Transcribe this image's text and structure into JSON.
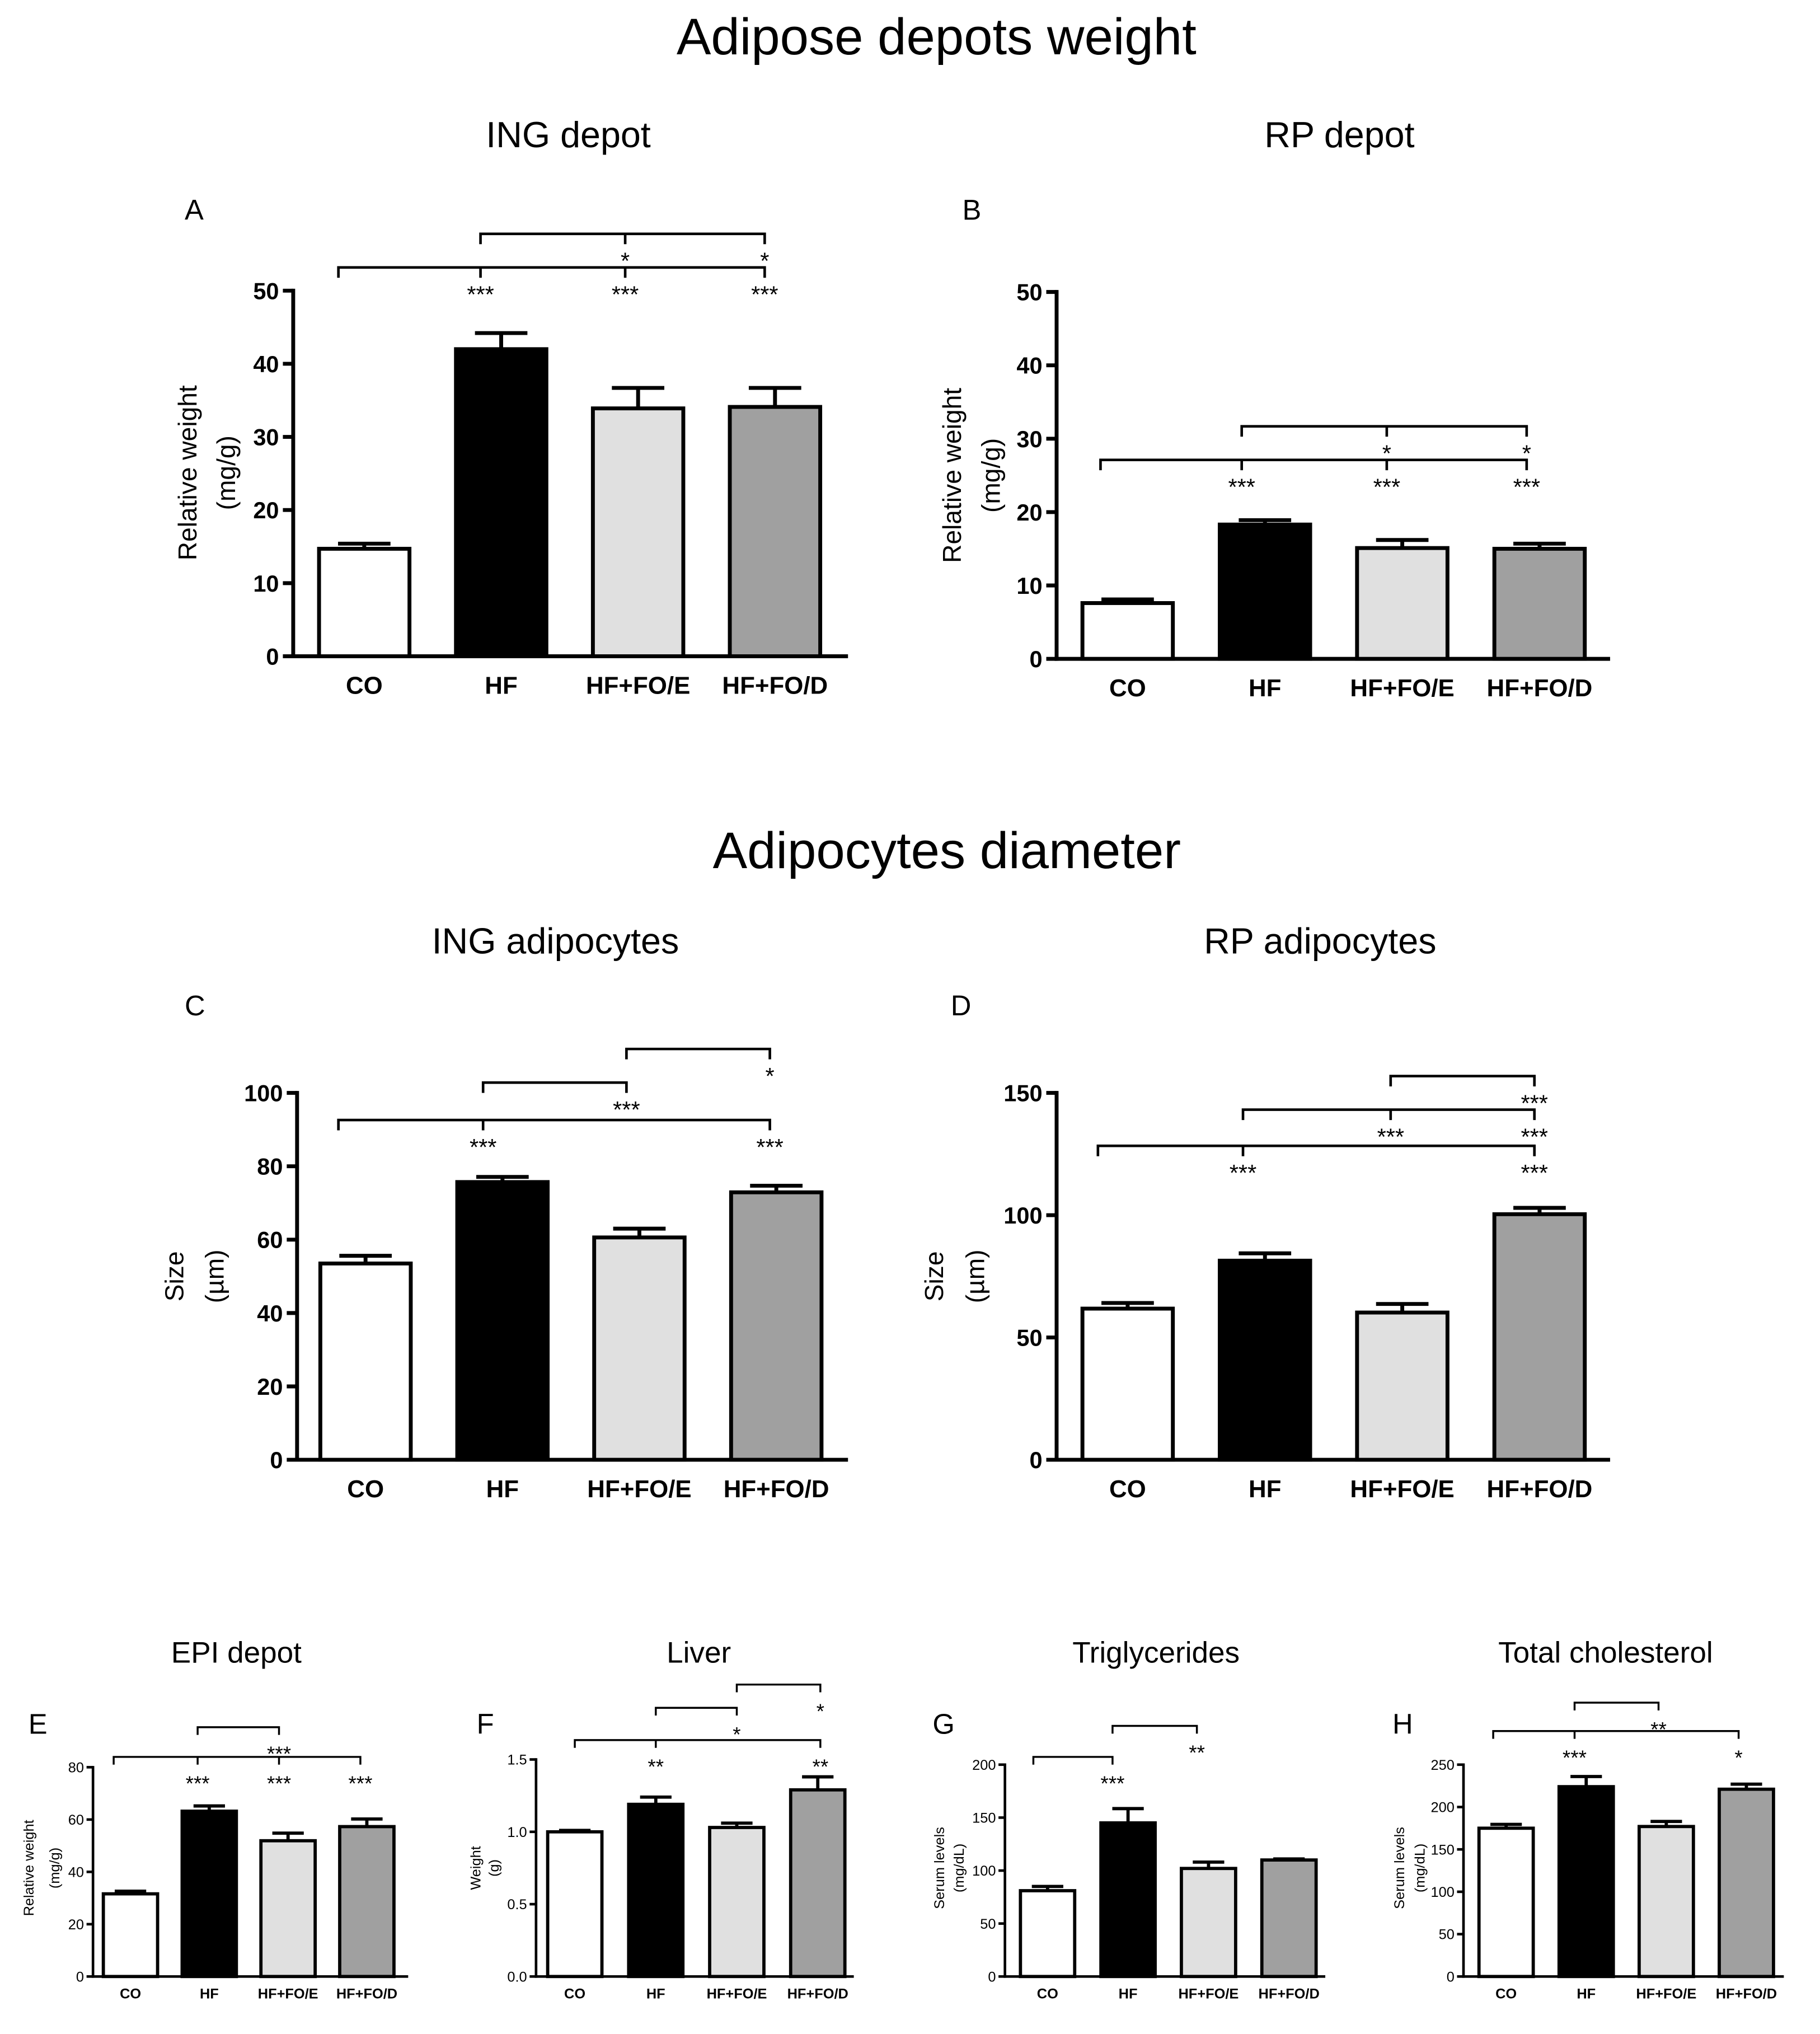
{
  "figure": {
    "sections": [
      {
        "title": "Adipose depots weight"
      },
      {
        "title": "Adipocytes diameter"
      }
    ]
  },
  "chart_data": [
    {
      "panel": "A",
      "type": "bar",
      "title": "ING depot",
      "categories": [
        "CO",
        "HF",
        "HF+FO/E",
        "HF+FO/D"
      ],
      "values": [
        14.7,
        42.0,
        33.9,
        34.1
      ],
      "errors": [
        0.7,
        2.2,
        2.8,
        2.6
      ],
      "ylabel": [
        "Relative weight",
        "(mg/g)"
      ],
      "ylim": [
        0,
        50
      ],
      "yticks": [
        0,
        10,
        20,
        30,
        40,
        50
      ],
      "ytick_labels": [
        "0",
        "10",
        "20",
        "30",
        "40",
        "50"
      ],
      "bar_colors": [
        "#ffffff",
        "#000000",
        "#e0e0e0",
        "#a0a0a0"
      ],
      "significance": [
        {
          "level": 1,
          "from": 0,
          "to": 3,
          "ticks": [
            0,
            1,
            2,
            3
          ],
          "labels": [
            {
              "at": 1,
              "text": "***"
            },
            {
              "at": 2,
              "text": "***"
            },
            {
              "at": 3,
              "text": "***"
            }
          ]
        },
        {
          "level": 2,
          "from": 1,
          "to": 3,
          "ticks": [
            1,
            2,
            3
          ],
          "labels": [
            {
              "at": 2,
              "text": "*"
            },
            {
              "at": 3,
              "text": "*"
            }
          ]
        }
      ]
    },
    {
      "panel": "B",
      "type": "bar",
      "title": "RP depot",
      "categories": [
        "CO",
        "HF",
        "HF+FO/E",
        "HF+FO/D"
      ],
      "values": [
        7.6,
        18.3,
        15.1,
        15.0
      ],
      "errors": [
        0.5,
        0.6,
        1.1,
        0.7
      ],
      "ylabel": [
        "Relative weight",
        "(mg/g)"
      ],
      "ylim": [
        0,
        50
      ],
      "yticks": [
        0,
        10,
        20,
        30,
        40,
        50
      ],
      "ytick_labels": [
        "0",
        "10",
        "20",
        "30",
        "40",
        "50"
      ],
      "bar_colors": [
        "#ffffff",
        "#000000",
        "#e0e0e0",
        "#a0a0a0"
      ],
      "significance": [
        {
          "level": 1,
          "from": 0,
          "to": 3,
          "ticks": [
            0,
            1,
            2,
            3
          ],
          "labels": [
            {
              "at": 1,
              "text": "***"
            },
            {
              "at": 2,
              "text": "***"
            },
            {
              "at": 3,
              "text": "***"
            }
          ]
        },
        {
          "level": 2,
          "from": 1,
          "to": 3,
          "ticks": [
            1,
            2,
            3
          ],
          "labels": [
            {
              "at": 2,
              "text": "*"
            },
            {
              "at": 3,
              "text": "*"
            }
          ]
        }
      ]
    },
    {
      "panel": "C",
      "type": "bar",
      "title": "ING adipocytes",
      "categories": [
        "CO",
        "HF",
        "HF+FO/E",
        "HF+FO/D"
      ],
      "values": [
        53.5,
        75.7,
        60.6,
        72.9
      ],
      "errors": [
        2.1,
        1.4,
        2.4,
        1.8
      ],
      "ylabel": [
        "Size",
        "(µm)"
      ],
      "ylim": [
        0,
        100
      ],
      "yticks": [
        0,
        20,
        40,
        60,
        80,
        100
      ],
      "ytick_labels": [
        "0",
        "20",
        "40",
        "60",
        "80",
        "100"
      ],
      "bar_colors": [
        "#ffffff",
        "#000000",
        "#e0e0e0",
        "#a0a0a0"
      ],
      "significance": [
        {
          "level": 1,
          "from": 0,
          "to": 3,
          "ticks": [
            0,
            1,
            3
          ],
          "labels": [
            {
              "at": 1,
              "text": "***"
            },
            {
              "at": 3,
              "text": "***"
            }
          ]
        },
        {
          "level": 2,
          "from": 1,
          "to": 2,
          "ticks": [
            1,
            2
          ],
          "labels": [
            {
              "at": 2,
              "text": "***"
            }
          ]
        },
        {
          "level": 3,
          "from": 2,
          "to": 3,
          "ticks": [
            2,
            3
          ],
          "labels": [
            {
              "at": 3,
              "text": "*"
            }
          ]
        }
      ]
    },
    {
      "panel": "D",
      "type": "bar",
      "title": "RP adipocytes",
      "categories": [
        "CO",
        "HF",
        "HF+FO/E",
        "HF+FO/D"
      ],
      "values": [
        61.8,
        81.4,
        60.2,
        100.4
      ],
      "errors": [
        2.3,
        3.0,
        3.5,
        2.6
      ],
      "ylabel": [
        "Size",
        "(µm)"
      ],
      "ylim": [
        0,
        150
      ],
      "yticks": [
        0,
        50,
        100,
        150
      ],
      "ytick_labels": [
        "0",
        "50",
        "100",
        "150"
      ],
      "bar_colors": [
        "#ffffff",
        "#000000",
        "#e0e0e0",
        "#a0a0a0"
      ],
      "significance": [
        {
          "level": 1,
          "from": 0,
          "to": 3,
          "ticks": [
            0,
            1,
            3
          ],
          "labels": [
            {
              "at": 1,
              "text": "***"
            },
            {
              "at": 3,
              "text": "***"
            }
          ]
        },
        {
          "level": 2,
          "from": 1,
          "to": 3,
          "ticks": [
            1,
            2,
            3
          ],
          "labels": [
            {
              "at": 2,
              "text": "***"
            },
            {
              "at": 3,
              "text": "***"
            }
          ]
        },
        {
          "level": 3,
          "from": 2,
          "to": 3,
          "ticks": [
            2,
            3
          ],
          "labels": [
            {
              "at": 3,
              "text": "***"
            }
          ]
        }
      ]
    },
    {
      "panel": "E",
      "type": "bar",
      "title": "EPI depot",
      "categories": [
        "CO",
        "HF",
        "HF+FO/E",
        "HF+FO/D"
      ],
      "values": [
        31.6,
        63.2,
        51.9,
        57.3
      ],
      "errors": [
        1.0,
        2.0,
        2.9,
        2.9
      ],
      "ylabel": [
        "Relative weight",
        "(mg/g)"
      ],
      "ylim": [
        0,
        80
      ],
      "yticks": [
        0,
        20,
        40,
        60,
        80
      ],
      "ytick_labels": [
        "0",
        "20",
        "40",
        "60",
        "80"
      ],
      "bar_colors": [
        "#ffffff",
        "#000000",
        "#e0e0e0",
        "#a0a0a0"
      ],
      "significance": [
        {
          "level": 1,
          "from": 0,
          "to": 3,
          "ticks": [
            0,
            1,
            2,
            3
          ],
          "labels": [
            {
              "at": 1,
              "text": "***"
            },
            {
              "at": 2,
              "text": "***"
            },
            {
              "at": 3,
              "text": "***"
            }
          ]
        },
        {
          "level": 2,
          "from": 1,
          "to": 2,
          "ticks": [
            1,
            2
          ],
          "labels": [
            {
              "at": 2,
              "text": "***"
            }
          ]
        }
      ]
    },
    {
      "panel": "F",
      "type": "bar",
      "title": "Liver",
      "categories": [
        "CO",
        "HF",
        "HF+FO/E",
        "HF+FO/D"
      ],
      "values": [
        1.0,
        1.19,
        1.03,
        1.29
      ],
      "errors": [
        0.01,
        0.05,
        0.03,
        0.09
      ],
      "ylabel": [
        "Weight",
        "(g)"
      ],
      "ylim": [
        0,
        1.5
      ],
      "yticks": [
        0,
        0.5,
        1.0,
        1.5
      ],
      "ytick_labels": [
        "0.0",
        "0.5",
        "1.0",
        "1.5"
      ],
      "bar_colors": [
        "#ffffff",
        "#000000",
        "#e0e0e0",
        "#a0a0a0"
      ],
      "significance": [
        {
          "level": 1,
          "from": 0,
          "to": 3,
          "ticks": [
            0,
            1,
            3
          ],
          "labels": [
            {
              "at": 1,
              "text": "**"
            },
            {
              "at": 3,
              "text": "**"
            }
          ]
        },
        {
          "level": 2,
          "from": 1,
          "to": 2,
          "ticks": [
            1,
            2
          ],
          "labels": [
            {
              "at": 2,
              "text": "*"
            }
          ]
        },
        {
          "level": 3,
          "from": 2,
          "to": 3,
          "ticks": [
            2,
            3
          ],
          "labels": [
            {
              "at": 3,
              "text": "*"
            }
          ]
        }
      ]
    },
    {
      "panel": "G",
      "type": "bar",
      "title": "Triglycerides",
      "categories": [
        "CO",
        "HF",
        "HF+FO/E",
        "HF+FO/D"
      ],
      "values": [
        81,
        145,
        102,
        110
      ],
      "errors": [
        4,
        13.5,
        6,
        1
      ],
      "ylabel": [
        "Serum levels",
        "(mg/dL)"
      ],
      "ylim": [
        0,
        200
      ],
      "yticks": [
        0,
        50,
        100,
        150,
        200
      ],
      "ytick_labels": [
        "0",
        "50",
        "100",
        "150",
        "200"
      ],
      "bar_colors": [
        "#ffffff",
        "#000000",
        "#e0e0e0",
        "#a0a0a0"
      ],
      "significance": [
        {
          "level": 1,
          "from": 0,
          "to": 1,
          "ticks": [
            0,
            1
          ],
          "labels": [
            {
              "at": 1,
              "text": "***"
            }
          ]
        },
        {
          "level": 2,
          "from": 1,
          "to": 2,
          "ticks": [
            1,
            2
          ],
          "labels": [
            {
              "at": 2,
              "text": "**"
            }
          ]
        }
      ]
    },
    {
      "panel": "H",
      "type": "bar",
      "title": "Total cholesterol",
      "categories": [
        "CO",
        "HF",
        "HF+FO/E",
        "HF+FO/D"
      ],
      "values": [
        175,
        224,
        177,
        221
      ],
      "errors": [
        4.5,
        12,
        6,
        6
      ],
      "ylabel": [
        "Serum levels",
        "(mg/dL)"
      ],
      "ylim": [
        0,
        250
      ],
      "yticks": [
        0,
        50,
        100,
        150,
        200,
        250
      ],
      "ytick_labels": [
        "0",
        "50",
        "100",
        "150",
        "200",
        "250"
      ],
      "bar_colors": [
        "#ffffff",
        "#000000",
        "#e0e0e0",
        "#a0a0a0"
      ],
      "significance": [
        {
          "level": 1,
          "from": 0,
          "to": 3,
          "ticks": [
            0,
            1,
            3
          ],
          "labels": [
            {
              "at": 1,
              "text": "***"
            },
            {
              "at": 3,
              "text": "*"
            }
          ]
        },
        {
          "level": 2,
          "from": 1,
          "to": 2,
          "ticks": [
            1,
            2
          ],
          "labels": [
            {
              "at": 2,
              "text": "**"
            }
          ]
        }
      ]
    }
  ]
}
